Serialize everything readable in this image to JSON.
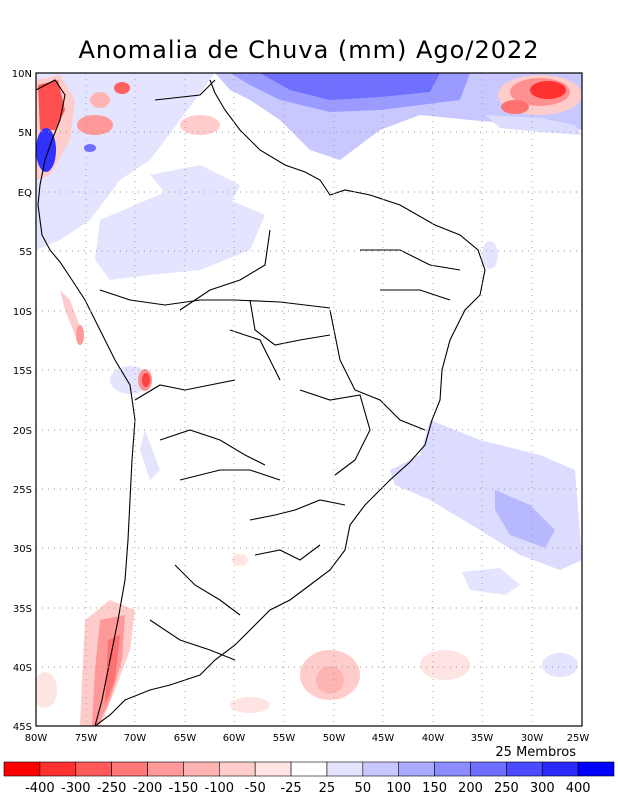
{
  "title": "Anomalia de Chuva (mm) Ago/2022",
  "map": {
    "lat_ticks": [
      "10N",
      "5N",
      "EQ",
      "5S",
      "10S",
      "15S",
      "20S",
      "25S",
      "30S",
      "35S",
      "40S",
      "45S"
    ],
    "lon_ticks": [
      "80W",
      "75W",
      "70W",
      "65W",
      "60W",
      "55W",
      "50W",
      "45W",
      "40W",
      "35W",
      "30W",
      "25W"
    ],
    "extent": {
      "lon_min": -80,
      "lon_max": -25,
      "lat_min": -45,
      "lat_max": 10
    },
    "grid": true
  },
  "footer": {
    "members": "25 Membros"
  },
  "legend": {
    "labels": [
      "-400",
      "-300",
      "-250",
      "-200",
      "-150",
      "-100",
      "-50",
      "-25",
      "25",
      "50",
      "100",
      "150",
      "200",
      "250",
      "300",
      "400"
    ],
    "colors": [
      "#ff0000",
      "#ff3030",
      "#ff5a5a",
      "#ff7878",
      "#ff9898",
      "#ffb4b4",
      "#ffcccc",
      "#ffe4e4",
      "#ffffff",
      "#e4e4ff",
      "#c8c8ff",
      "#aaaaff",
      "#8c8cff",
      "#6e6eff",
      "#4b4bff",
      "#2a2aff",
      "#0000ff"
    ]
  }
}
